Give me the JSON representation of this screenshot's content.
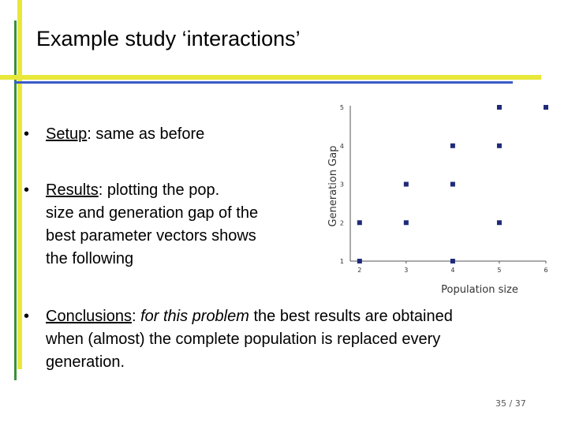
{
  "title": "Example study ‘interactions’",
  "bullets": {
    "setup": {
      "term": "Setup",
      "rest": ": same as before"
    },
    "results": {
      "term": "Results",
      "lines": [
        ": plotting the pop.",
        "size and generation gap of the",
        "best parameter vectors shows",
        "the following"
      ]
    },
    "conclusions": {
      "term": "Conclusions",
      "sep": ": ",
      "italic": "for this problem",
      "rest_first": " the best results are obtained",
      "lines": [
        "when (almost) the complete population is replaced every",
        "generation."
      ]
    }
  },
  "chart_data": {
    "type": "scatter",
    "xlabel": "Population size",
    "ylabel": "Generation Gap",
    "x_ticks": [
      "2",
      "3",
      "4",
      "5",
      "6"
    ],
    "y_ticks": [
      "1",
      "2",
      "3",
      "4",
      "5"
    ],
    "xlim": [
      1.8,
      6.0
    ],
    "ylim": [
      1,
      5
    ],
    "points": [
      {
        "x": 2,
        "y": 1
      },
      {
        "x": 2,
        "y": 2
      },
      {
        "x": 3,
        "y": 2
      },
      {
        "x": 3,
        "y": 3
      },
      {
        "x": 4,
        "y": 1
      },
      {
        "x": 4,
        "y": 3
      },
      {
        "x": 4,
        "y": 4
      },
      {
        "x": 5,
        "y": 2
      },
      {
        "x": 5,
        "y": 4
      },
      {
        "x": 5,
        "y": 5
      },
      {
        "x": 6,
        "y": 5
      }
    ],
    "marker_color": "#1f2a7a",
    "grid": false
  },
  "page_number": "35 / 37"
}
